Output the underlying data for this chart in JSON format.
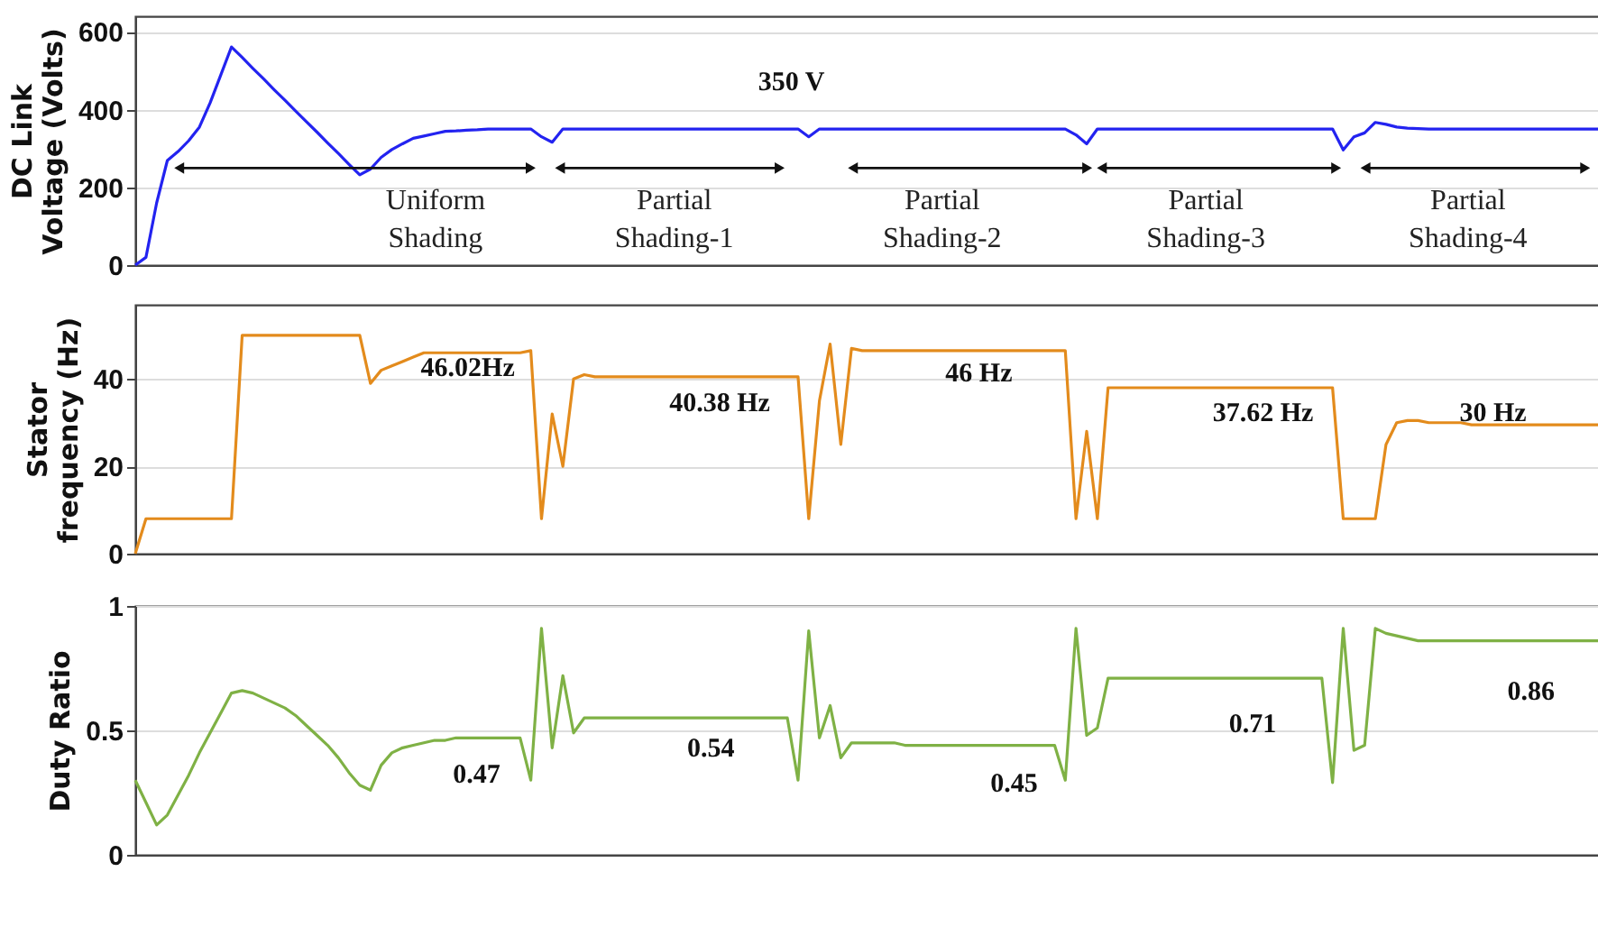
{
  "chart_data": [
    {
      "type": "line",
      "ylabel": "DC Link Voltage (Volts)",
      "color": "#2323f0",
      "ylim": [
        0,
        640
      ],
      "yticks": [
        0,
        200,
        400,
        600
      ],
      "grid": "y",
      "tick_labels": "y",
      "categories": [
        null,
        null,
        null,
        null,
        null,
        null,
        null,
        null,
        null,
        null,
        null,
        null,
        null,
        null,
        null,
        null,
        null,
        null,
        null,
        null,
        null,
        null,
        null,
        null,
        null,
        null,
        null,
        null,
        null,
        null,
        null,
        null,
        null,
        null,
        null,
        null,
        null,
        null,
        null,
        null,
        null,
        null,
        null,
        null,
        null,
        null,
        null,
        null,
        null,
        null,
        null,
        null,
        null,
        null,
        null,
        null,
        null,
        null,
        null,
        null,
        null,
        null,
        null,
        null,
        null,
        null,
        null,
        null,
        null,
        null,
        null,
        null,
        null,
        null,
        null,
        null,
        null,
        null,
        null,
        null,
        null,
        null,
        null,
        null,
        null,
        null,
        null,
        null,
        null,
        null,
        null,
        null,
        null,
        null,
        null,
        null,
        null,
        null,
        null,
        null,
        null,
        null,
        null,
        null,
        null,
        null,
        null,
        null,
        null,
        null,
        null,
        null,
        null,
        null,
        null,
        null,
        null,
        null,
        null,
        null,
        null,
        null,
        null,
        null,
        null,
        null,
        null,
        null,
        null,
        null,
        null,
        null,
        null,
        null,
        null,
        null,
        null,
        null
      ],
      "values": [
        0,
        20,
        160,
        269,
        292,
        320,
        355,
        417,
        489,
        561,
        534,
        506,
        479,
        451,
        424,
        396,
        369,
        342,
        314,
        287,
        259,
        232,
        247,
        277,
        297,
        312,
        326,
        332,
        338,
        344,
        345,
        347,
        348,
        350,
        350,
        350,
        350,
        350,
        330,
        316,
        350,
        350,
        350,
        350,
        350,
        350,
        350,
        350,
        350,
        350,
        350,
        350,
        350,
        350,
        350,
        350,
        350,
        350,
        350,
        350,
        350,
        350,
        350,
        330,
        350,
        350,
        350,
        350,
        350,
        350,
        350,
        350,
        350,
        350,
        350,
        350,
        350,
        350,
        350,
        350,
        350,
        350,
        350,
        350,
        350,
        350,
        350,
        350,
        335,
        312,
        350,
        350,
        350,
        350,
        350,
        350,
        350,
        350,
        350,
        350,
        350,
        350,
        350,
        350,
        350,
        350,
        350,
        350,
        350,
        350,
        350,
        350,
        350,
        296,
        330,
        340,
        367,
        362,
        355,
        352,
        351,
        350,
        350,
        350,
        350,
        350,
        350,
        350,
        350,
        350,
        350,
        350,
        350,
        350,
        350,
        350,
        350,
        350
      ],
      "annotations": [
        "350 V",
        "Uniform Shading",
        "Partial Shading-1",
        "Partial Shading-2",
        "Partial Shading-3",
        "Partial Shading-4"
      ]
    },
    {
      "type": "line",
      "ylabel": "Stator frequency (Hz)",
      "color": "#e38b1c",
      "ylim": [
        0,
        57
      ],
      "yticks": [
        0,
        20,
        40
      ],
      "grid": "y",
      "tick_labels": "y",
      "categories": [
        null,
        null,
        null,
        null,
        null,
        null,
        null,
        null,
        null,
        null,
        null,
        null,
        null,
        null,
        null,
        null,
        null,
        null,
        null,
        null,
        null,
        null,
        null,
        null,
        null,
        null,
        null,
        null,
        null,
        null,
        null,
        null,
        null,
        null,
        null,
        null,
        null,
        null,
        null,
        null,
        null,
        null,
        null,
        null,
        null,
        null,
        null,
        null,
        null,
        null,
        null,
        null,
        null,
        null,
        null,
        null,
        null,
        null,
        null,
        null,
        null,
        null,
        null,
        null,
        null,
        null,
        null,
        null,
        null,
        null,
        null,
        null,
        null,
        null,
        null,
        null,
        null,
        null,
        null,
        null,
        null,
        null,
        null,
        null,
        null,
        null,
        null,
        null,
        null,
        null,
        null,
        null,
        null,
        null,
        null,
        null,
        null,
        null,
        null,
        null,
        null,
        null,
        null,
        null,
        null,
        null,
        null,
        null,
        null,
        null,
        null,
        null,
        null,
        null,
        null,
        null,
        null,
        null,
        null,
        null,
        null,
        null,
        null,
        null,
        null,
        null,
        null,
        null,
        null,
        null,
        null,
        null,
        null,
        null,
        null,
        null,
        null,
        null
      ],
      "values": [
        0,
        8,
        8,
        8,
        8,
        8,
        8,
        8,
        8,
        8,
        50,
        50,
        50,
        50,
        50,
        50,
        50,
        50,
        50,
        50,
        50,
        50,
        39,
        42,
        43,
        44,
        45,
        46,
        46,
        46,
        46,
        46,
        46,
        46,
        46,
        46,
        46,
        46.5,
        8,
        32,
        20,
        40,
        41,
        40.5,
        40.5,
        40.5,
        40.5,
        40.5,
        40.5,
        40.5,
        40.5,
        40.5,
        40.5,
        40.5,
        40.5,
        40.5,
        40.5,
        40.5,
        40.5,
        40.5,
        40.5,
        40.5,
        40.5,
        8,
        35,
        48,
        25,
        47,
        46.5,
        46.5,
        46.5,
        46.5,
        46.5,
        46.5,
        46.5,
        46.5,
        46.5,
        46.5,
        46.5,
        46.5,
        46.5,
        46.5,
        46.5,
        46.5,
        46.5,
        46.5,
        46.5,
        46.5,
        8,
        28,
        8,
        38,
        38,
        38,
        38,
        38,
        38,
        38,
        38,
        38,
        38,
        38,
        38,
        38,
        38,
        38,
        38,
        38,
        38,
        38,
        38,
        38,
        38,
        8,
        8,
        8,
        8,
        25,
        30,
        30.5,
        30.5,
        30,
        30,
        30,
        30,
        29.5,
        29.5,
        29.5,
        29.5,
        29.5,
        29.5,
        29.5,
        29.5,
        29.5,
        29.5,
        29.5,
        29.5,
        29.5
      ],
      "annotations": [
        "46.02Hz",
        "40.38 Hz",
        "46 Hz",
        "37.62 Hz",
        "30 Hz"
      ]
    },
    {
      "type": "line",
      "ylabel": "Duty Ratio",
      "color": "#7fb145",
      "ylim": [
        0,
        1
      ],
      "yticks": [
        0,
        0.5,
        1
      ],
      "grid": "y",
      "tick_labels": "y",
      "categories": [
        null,
        null,
        null,
        null,
        null,
        null,
        null,
        null,
        null,
        null,
        null,
        null,
        null,
        null,
        null,
        null,
        null,
        null,
        null,
        null,
        null,
        null,
        null,
        null,
        null,
        null,
        null,
        null,
        null,
        null,
        null,
        null,
        null,
        null,
        null,
        null,
        null,
        null,
        null,
        null,
        null,
        null,
        null,
        null,
        null,
        null,
        null,
        null,
        null,
        null,
        null,
        null,
        null,
        null,
        null,
        null,
        null,
        null,
        null,
        null,
        null,
        null,
        null,
        null,
        null,
        null,
        null,
        null,
        null,
        null,
        null,
        null,
        null,
        null,
        null,
        null,
        null,
        null,
        null,
        null,
        null,
        null,
        null,
        null,
        null,
        null,
        null,
        null,
        null,
        null,
        null,
        null,
        null,
        null,
        null,
        null,
        null,
        null,
        null,
        null,
        null,
        null,
        null,
        null,
        null,
        null,
        null,
        null,
        null,
        null,
        null,
        null,
        null,
        null,
        null,
        null,
        null,
        null,
        null,
        null,
        null,
        null,
        null,
        null,
        null,
        null,
        null,
        null,
        null,
        null,
        null,
        null,
        null,
        null,
        null,
        null,
        null,
        null
      ],
      "values": [
        0.3,
        0.21,
        0.12,
        0.16,
        0.24,
        0.32,
        0.41,
        0.49,
        0.57,
        0.65,
        0.66,
        0.65,
        0.63,
        0.61,
        0.59,
        0.56,
        0.52,
        0.48,
        0.44,
        0.39,
        0.33,
        0.28,
        0.26,
        0.36,
        0.41,
        0.43,
        0.44,
        0.45,
        0.46,
        0.46,
        0.47,
        0.47,
        0.47,
        0.47,
        0.47,
        0.47,
        0.47,
        0.3,
        0.91,
        0.43,
        0.72,
        0.49,
        0.55,
        0.55,
        0.55,
        0.55,
        0.55,
        0.55,
        0.55,
        0.55,
        0.55,
        0.55,
        0.55,
        0.55,
        0.55,
        0.55,
        0.55,
        0.55,
        0.55,
        0.55,
        0.55,
        0.55,
        0.3,
        0.9,
        0.47,
        0.6,
        0.39,
        0.45,
        0.45,
        0.45,
        0.45,
        0.45,
        0.44,
        0.44,
        0.44,
        0.44,
        0.44,
        0.44,
        0.44,
        0.44,
        0.44,
        0.44,
        0.44,
        0.44,
        0.44,
        0.44,
        0.44,
        0.3,
        0.91,
        0.48,
        0.51,
        0.71,
        0.71,
        0.71,
        0.71,
        0.71,
        0.71,
        0.71,
        0.71,
        0.71,
        0.71,
        0.71,
        0.71,
        0.71,
        0.71,
        0.71,
        0.71,
        0.71,
        0.71,
        0.71,
        0.71,
        0.71,
        0.29,
        0.91,
        0.42,
        0.44,
        0.91,
        0.89,
        0.88,
        0.87,
        0.86,
        0.86,
        0.86,
        0.86,
        0.86,
        0.86,
        0.86,
        0.86,
        0.86,
        0.86,
        0.86,
        0.86,
        0.86,
        0.86,
        0.86,
        0.86,
        0.86,
        0.86
      ],
      "annotations": [
        "0.47",
        "0.54",
        "0.45",
        "0.71",
        "0.86"
      ]
    }
  ]
}
